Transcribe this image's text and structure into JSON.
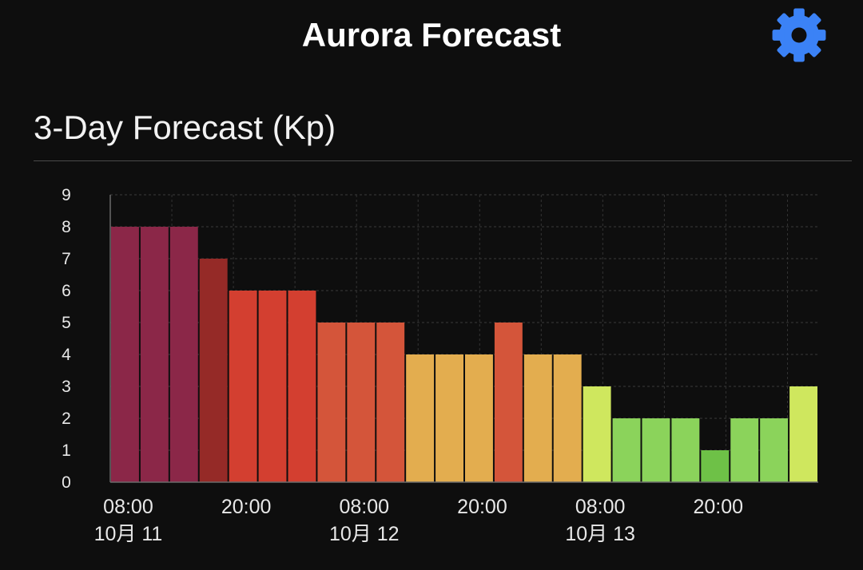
{
  "header": {
    "title": "Aurora Forecast",
    "settings_icon": "gear-icon",
    "settings_color": "#3b82f6"
  },
  "section": {
    "title": "3-Day Forecast (Kp)"
  },
  "chart_data": {
    "type": "bar",
    "title": "",
    "xlabel": "",
    "ylabel": "",
    "ylim": [
      0,
      9
    ],
    "y_ticks": [
      0,
      1,
      2,
      3,
      4,
      5,
      6,
      7,
      8,
      9
    ],
    "grid": true,
    "legend": "none",
    "x_tick_labels": [
      {
        "bar_index": 0,
        "time": "08:00",
        "date": "10月 11"
      },
      {
        "bar_index": 4,
        "time": "20:00",
        "date": ""
      },
      {
        "bar_index": 8,
        "time": "08:00",
        "date": "10月 12"
      },
      {
        "bar_index": 12,
        "time": "20:00",
        "date": ""
      },
      {
        "bar_index": 16,
        "time": "08:00",
        "date": "10月 13"
      },
      {
        "bar_index": 20,
        "time": "20:00",
        "date": ""
      }
    ],
    "values": [
      8,
      8,
      8,
      7,
      6,
      6,
      6,
      5,
      5,
      5,
      4,
      4,
      4,
      5,
      4,
      4,
      3,
      2,
      2,
      2,
      1,
      2,
      2,
      3
    ],
    "colors": [
      "#8b2748",
      "#8b2748",
      "#8b2748",
      "#952a27",
      "#d33f30",
      "#d33f30",
      "#d33f30",
      "#d4553a",
      "#d4553a",
      "#d4553a",
      "#e3ad4f",
      "#e3ad4f",
      "#e3ad4f",
      "#d4553a",
      "#e3ad4f",
      "#e3ad4f",
      "#cfe75e",
      "#8bd35b",
      "#8bd35b",
      "#8bd35b",
      "#6ec147",
      "#8bd35b",
      "#8bd35b",
      "#cfe75e"
    ]
  }
}
